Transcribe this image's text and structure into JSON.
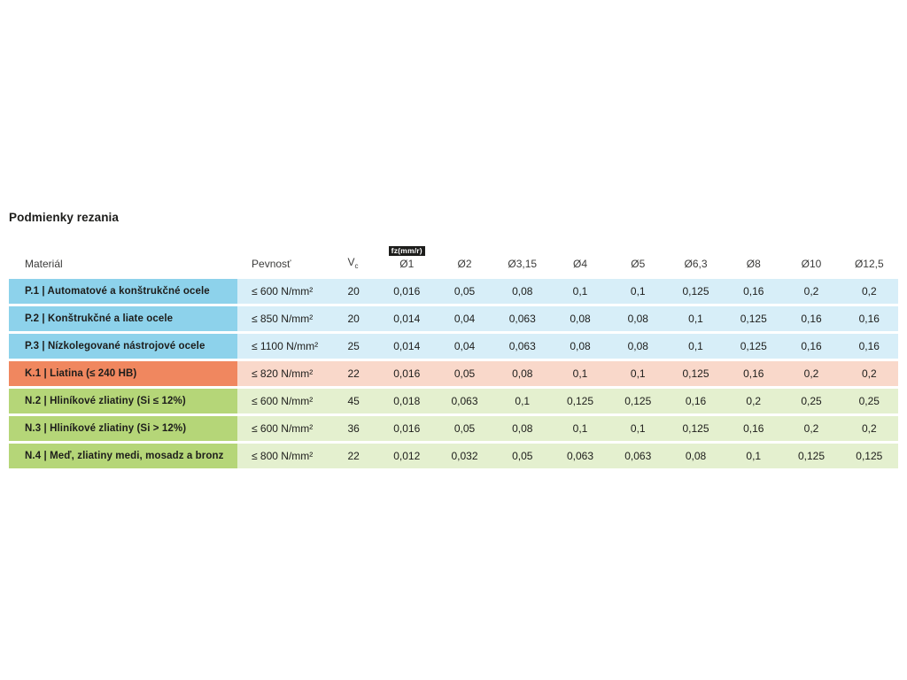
{
  "page": {
    "title": "Podmienky rezania"
  },
  "table": {
    "header": {
      "material": "Materiál",
      "strength": "Pevnosť",
      "vc_base": "V",
      "vc_sub": "c",
      "fz_badge": "fz(mm/r)",
      "diameters": [
        "Ø1",
        "Ø2",
        "Ø3,15",
        "Ø4",
        "Ø5",
        "Ø6,3",
        "Ø8",
        "Ø10",
        "Ø12,5"
      ]
    },
    "rows": [
      {
        "group": "P",
        "material": "P.1 | Automatové a konštrukčné ocele",
        "strength": "≤ 600 N/mm²",
        "vc": "20",
        "fz": [
          "0,016",
          "0,05",
          "0,08",
          "0,1",
          "0,1",
          "0,125",
          "0,16",
          "0,2",
          "0,2"
        ]
      },
      {
        "group": "P",
        "material": "P.2 | Konštrukčné a liate ocele",
        "strength": "≤ 850 N/mm²",
        "vc": "20",
        "fz": [
          "0,014",
          "0,04",
          "0,063",
          "0,08",
          "0,08",
          "0,1",
          "0,125",
          "0,16",
          "0,16"
        ]
      },
      {
        "group": "P",
        "material": "P.3 | Nízkolegované nástrojové ocele",
        "strength": "≤ 1100 N/mm²",
        "vc": "25",
        "fz": [
          "0,014",
          "0,04",
          "0,063",
          "0,08",
          "0,08",
          "0,1",
          "0,125",
          "0,16",
          "0,16"
        ]
      },
      {
        "group": "K",
        "material": "K.1 | Liatina (≤ 240 HB)",
        "strength": "≤ 820 N/mm²",
        "vc": "22",
        "fz": [
          "0,016",
          "0,05",
          "0,08",
          "0,1",
          "0,1",
          "0,125",
          "0,16",
          "0,2",
          "0,2"
        ]
      },
      {
        "group": "N",
        "material": "N.2 | Hliníkové zliatiny (Si ≤ 12%)",
        "strength": "≤ 600 N/mm²",
        "vc": "45",
        "fz": [
          "0,018",
          "0,063",
          "0,1",
          "0,125",
          "0,125",
          "0,16",
          "0,2",
          "0,25",
          "0,25"
        ]
      },
      {
        "group": "N",
        "material": "N.3 | Hliníkové zliatiny (Si > 12%)",
        "strength": "≤ 600 N/mm²",
        "vc": "36",
        "fz": [
          "0,016",
          "0,05",
          "0,08",
          "0,1",
          "0,1",
          "0,125",
          "0,16",
          "0,2",
          "0,2"
        ]
      },
      {
        "group": "N",
        "material": "N.4 | Meď, zliatiny medi, mosadz a bronz",
        "strength": "≤ 800 N/mm²",
        "vc": "22",
        "fz": [
          "0,012",
          "0,032",
          "0,05",
          "0,063",
          "0,063",
          "0,08",
          "0,1",
          "0,125",
          "0,125"
        ]
      }
    ],
    "colors": {
      "steel_dark": "#8dd2eb",
      "steel_light": "#d7eef8",
      "cast_iron_dark": "#f0875f",
      "cast_iron_light": "#f9d8ca",
      "nonferrous_dark": "#b5d678",
      "nonferrous_light": "#e4f0cf",
      "badge_bg": "#1d1d1b",
      "badge_text": "#ffffff",
      "header_text": "#3c3c3b",
      "body_text": "#1d1d1b"
    }
  }
}
